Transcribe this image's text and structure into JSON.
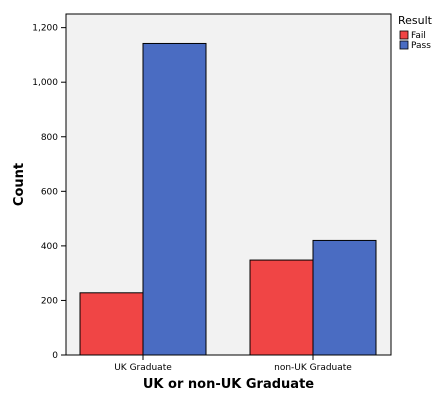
{
  "chart_data": {
    "type": "bar",
    "title": "",
    "xlabel": "UK or non-UK Graduate",
    "ylabel": "Count",
    "categories": [
      "UK Graduate",
      "non-UK Graduate"
    ],
    "series": [
      {
        "name": "Fail",
        "values": [
          228,
          348
        ],
        "color": "#f04545"
      },
      {
        "name": "Pass",
        "values": [
          1142,
          420
        ],
        "color": "#4a6cc2"
      }
    ],
    "ylim": [
      0,
      1250
    ],
    "yticks": [
      0,
      200,
      400,
      600,
      800,
      1000,
      1200
    ],
    "ytick_labels": [
      "0",
      "200",
      "400",
      "600",
      "800",
      "1,000",
      "1,200"
    ],
    "legend": {
      "title": "Result",
      "placement": "right"
    },
    "plot_background": "#f2f2f2",
    "grid": false
  }
}
